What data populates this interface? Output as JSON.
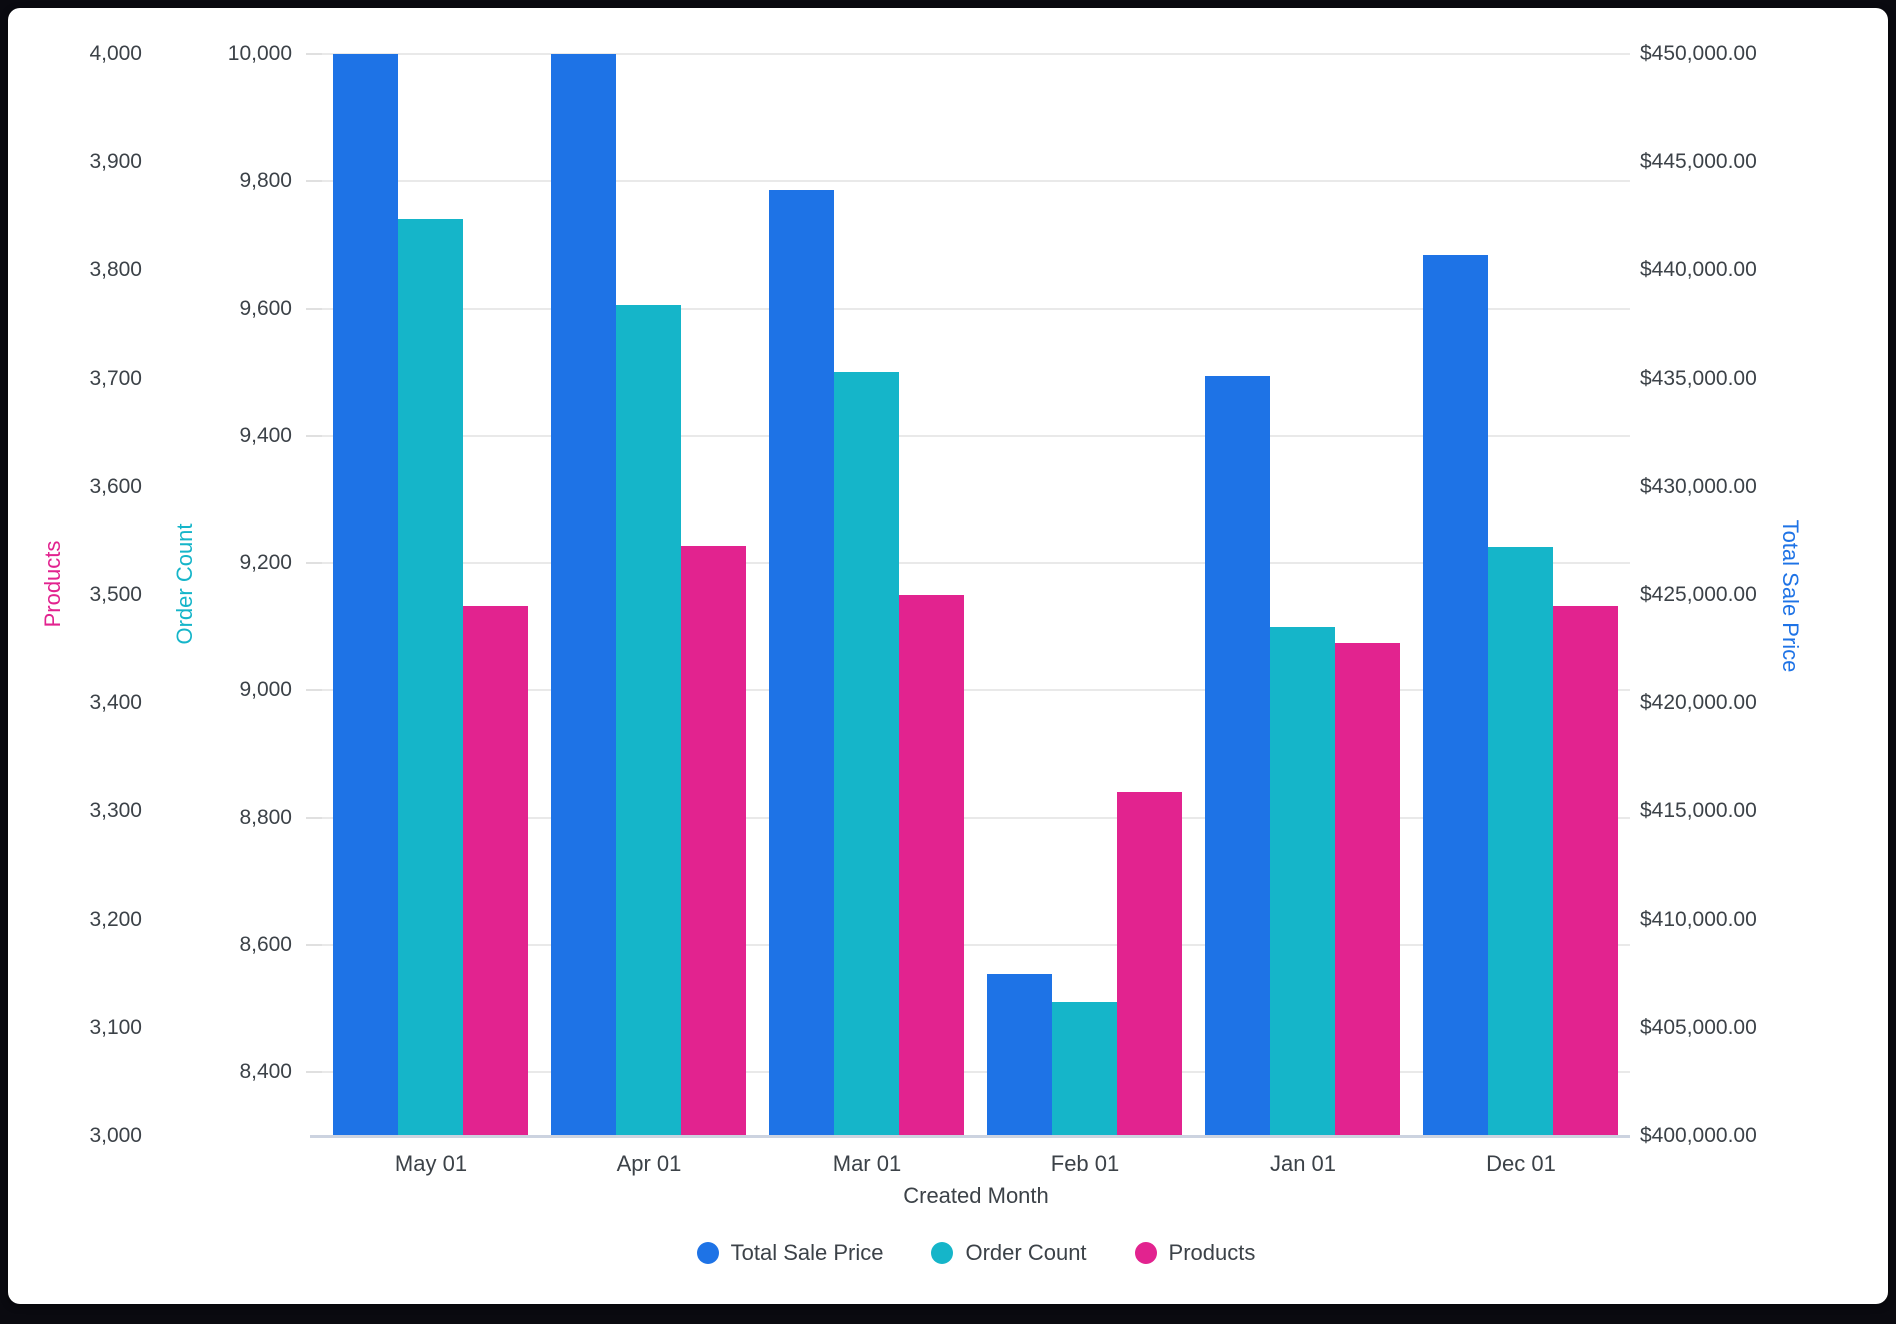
{
  "chart_data": {
    "type": "bar",
    "title": "",
    "xlabel": "Created Month",
    "categories": [
      "May 01",
      "Apr 01",
      "Mar 01",
      "Feb 01",
      "Jan 01",
      "Dec 01"
    ],
    "series": [
      {
        "name": "Total Sale Price",
        "axis": "sale",
        "color": "#1E73E6",
        "values": [
          450000,
          450000,
          443700,
          407500,
          435100,
          440700
        ]
      },
      {
        "name": "Order Count",
        "axis": "order",
        "color": "#15B5C9",
        "values": [
          9740,
          9605,
          9500,
          8510,
          9100,
          9225
        ]
      },
      {
        "name": "Products",
        "axis": "products",
        "color": "#E2238F",
        "values": [
          3490,
          3545,
          3500,
          3318,
          3456,
          3490
        ]
      }
    ],
    "axes": {
      "products": {
        "title": "Products",
        "color": "#E2238F",
        "min": 3000,
        "max": 4000,
        "tick_values": [
          3000,
          3100,
          3200,
          3300,
          3400,
          3500,
          3600,
          3700,
          3800,
          3900,
          4000
        ],
        "tick_labels": [
          "3,000",
          "3,100",
          "3,200",
          "3,300",
          "3,400",
          "3,500",
          "3,600",
          "3,700",
          "3,800",
          "3,900",
          "4,000"
        ]
      },
      "order": {
        "title": "Order Count",
        "color": "#15B5C9",
        "min": 8300,
        "max": 10000,
        "tick_values": [
          8400,
          8600,
          8800,
          9000,
          9200,
          9400,
          9600,
          9800,
          10000
        ],
        "tick_labels": [
          "8,400",
          "8,600",
          "8,800",
          "9,000",
          "9,200",
          "9,400",
          "9,600",
          "9,800",
          "10,000"
        ]
      },
      "sale": {
        "title": "Total Sale Price",
        "color": "#1E73E6",
        "min": 400000,
        "max": 450000,
        "tick_values": [
          400000,
          405000,
          410000,
          415000,
          420000,
          425000,
          430000,
          435000,
          440000,
          445000,
          450000
        ],
        "tick_labels": [
          "$400,000.00",
          "$405,000.00",
          "$410,000.00",
          "$415,000.00",
          "$420,000.00",
          "$425,000.00",
          "$430,000.00",
          "$435,000.00",
          "$440,000.00",
          "$445,000.00",
          "$450,000.00"
        ]
      }
    },
    "legend": [
      "Total Sale Price",
      "Order Count",
      "Products"
    ],
    "layout": {
      "grid": "horizontal lines at Order Count ticks",
      "legend_position": "bottom-center",
      "background": "#ffffff"
    }
  }
}
